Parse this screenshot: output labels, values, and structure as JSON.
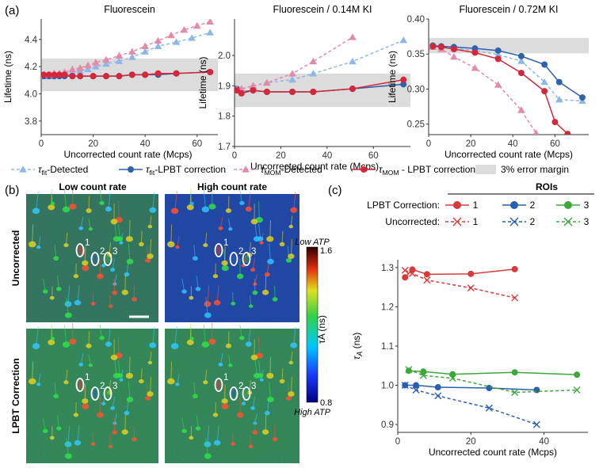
{
  "panel_labels": {
    "a": "(a)",
    "b": "(b)",
    "c": "(c)"
  },
  "colors": {
    "fit_detected": "#8fb7e6",
    "fit_lpbt": "#2f62ad",
    "mom_detected": "#e38aa8",
    "mom_lpbt": "#d4273a",
    "error_band": "#dcdcdc",
    "roi1": "#d83a3a",
    "roi2": "#2a5fb0",
    "roi3": "#3ca83a"
  },
  "chart_data": [
    {
      "type": "line",
      "title": "Fluorescein",
      "xlabel": "Uncorrected count rate (Mcps)",
      "ylabel": "Lifetime (ns)",
      "xlim": [
        0,
        68
      ],
      "ylim": [
        3.7,
        4.55
      ],
      "xticks": [
        0,
        20,
        40,
        60
      ],
      "yticks": [
        3.8,
        4.0,
        4.2,
        4.4
      ],
      "ytick_labels": [
        "3.8",
        "4.0",
        "4.2",
        "4.4"
      ],
      "error_band": [
        4.02,
        4.26
      ],
      "series": [
        {
          "name": "τfit-Detected",
          "style": "dashed",
          "marker": "triangle",
          "color_key": "fit_detected",
          "x": [
            1,
            3,
            5,
            7,
            9,
            12,
            15,
            18,
            21,
            25,
            30,
            35,
            40,
            45,
            52,
            58,
            65
          ],
          "y": [
            4.13,
            4.13,
            4.14,
            4.14,
            4.15,
            4.16,
            4.17,
            4.18,
            4.2,
            4.22,
            4.24,
            4.27,
            4.31,
            4.35,
            4.38,
            4.41,
            4.45
          ]
        },
        {
          "name": "τfit-LPBT correction",
          "style": "solid",
          "marker": "circle",
          "color_key": "fit_lpbt",
          "x": [
            1,
            3,
            5,
            7,
            9,
            12,
            15,
            20,
            25,
            30,
            35,
            40,
            45,
            52,
            65
          ],
          "y": [
            4.13,
            4.13,
            4.13,
            4.13,
            4.13,
            4.13,
            4.13,
            4.13,
            4.13,
            4.13,
            4.14,
            4.14,
            4.14,
            4.15,
            4.16
          ]
        },
        {
          "name": "τMOM-Detected",
          "style": "dashed",
          "marker": "triangle",
          "color_key": "mom_detected",
          "x": [
            1,
            3,
            5,
            7,
            9,
            12,
            15,
            18,
            21,
            25,
            30,
            35,
            40,
            45,
            50,
            55,
            60,
            65
          ],
          "y": [
            4.14,
            4.14,
            4.15,
            4.15,
            4.16,
            4.18,
            4.19,
            4.21,
            4.23,
            4.25,
            4.28,
            4.31,
            4.35,
            4.39,
            4.43,
            4.47,
            4.5,
            4.53
          ]
        },
        {
          "name": "τMOM - LPBT correction",
          "style": "solid",
          "marker": "circle",
          "color_key": "mom_lpbt",
          "x": [
            1,
            3,
            5,
            7,
            9,
            12,
            15,
            20,
            25,
            30,
            35,
            40,
            45,
            52,
            65
          ],
          "y": [
            4.14,
            4.14,
            4.14,
            4.14,
            4.14,
            4.13,
            4.13,
            4.13,
            4.13,
            4.13,
            4.14,
            4.14,
            4.15,
            4.15,
            4.16
          ]
        }
      ]
    },
    {
      "type": "line",
      "title": "Fluorescein / 0.14M KI",
      "xlabel": "Uncorrected count rate (Mcps)",
      "ylabel": "Lifetime (ns)",
      "xlim": [
        0,
        76
      ],
      "ylim": [
        1.7,
        2.12
      ],
      "xticks": [
        0,
        20,
        40,
        60
      ],
      "yticks": [
        1.7,
        1.8,
        1.9,
        2.0
      ],
      "ytick_labels": [
        "1.7",
        "1.8",
        "1.9",
        "2.0"
      ],
      "error_band": [
        1.83,
        1.94
      ],
      "series": [
        {
          "name": "τfit-Detected",
          "style": "dashed",
          "marker": "triangle",
          "color_key": "fit_detected",
          "x": [
            1,
            3,
            8,
            14,
            25,
            34,
            51,
            73
          ],
          "y": [
            1.89,
            1.89,
            1.9,
            1.91,
            1.92,
            1.94,
            1.98,
            2.05
          ]
        },
        {
          "name": "τfit-LPBT correction",
          "style": "solid",
          "marker": "circle",
          "color_key": "fit_lpbt",
          "x": [
            1,
            3,
            8,
            14,
            25,
            34,
            51,
            73
          ],
          "y": [
            1.89,
            1.88,
            1.885,
            1.88,
            1.88,
            1.88,
            1.89,
            1.905
          ]
        },
        {
          "name": "τMOM-Detected",
          "style": "dashed",
          "marker": "triangle",
          "color_key": "mom_detected",
          "x": [
            1,
            3,
            8,
            14,
            25,
            34,
            51
          ],
          "y": [
            1.89,
            1.89,
            1.9,
            1.91,
            1.94,
            1.98,
            2.06
          ]
        },
        {
          "name": "τMOM - LPBT correction",
          "style": "solid",
          "marker": "circle",
          "color_key": "mom_lpbt",
          "x": [
            1,
            3,
            8,
            14,
            25,
            34,
            51,
            73
          ],
          "y": [
            1.885,
            1.875,
            1.885,
            1.88,
            1.88,
            1.88,
            1.89,
            1.92
          ]
        }
      ]
    },
    {
      "type": "line",
      "title": "Fluorescein / 0.72M KI",
      "xlabel": "Uncorrected count rate (Mcps)",
      "ylabel": "Lifetime (ns)",
      "xlim": [
        0,
        76
      ],
      "ylim": [
        0.235,
        0.4
      ],
      "xticks": [
        0,
        20,
        40,
        60
      ],
      "yticks": [
        0.25,
        0.3,
        0.35,
        0.4
      ],
      "ytick_labels": [
        "0.25",
        "0.30",
        "0.35",
        "0.40"
      ],
      "error_band": [
        0.351,
        0.373
      ],
      "series": [
        {
          "name": "τfit-Detected",
          "style": "dashed",
          "marker": "triangle",
          "color_key": "fit_detected",
          "x": [
            2,
            6,
            12,
            22,
            33,
            44,
            55,
            62,
            73
          ],
          "y": [
            0.362,
            0.361,
            0.358,
            0.355,
            0.349,
            0.34,
            0.31,
            0.285,
            0.283
          ]
        },
        {
          "name": "τfit-LPBT correction",
          "style": "solid",
          "marker": "circle",
          "color_key": "fit_lpbt",
          "x": [
            2,
            6,
            12,
            22,
            33,
            44,
            55,
            62,
            73
          ],
          "y": [
            0.362,
            0.361,
            0.36,
            0.358,
            0.355,
            0.347,
            0.335,
            0.31,
            0.288
          ]
        },
        {
          "name": "τMOM-Detected",
          "style": "dashed",
          "marker": "triangle",
          "color_key": "mom_detected",
          "x": [
            2,
            6,
            12,
            22,
            33,
            44,
            51
          ],
          "y": [
            0.36,
            0.357,
            0.346,
            0.33,
            0.306,
            0.27,
            0.237
          ]
        },
        {
          "name": "τMOM - LPBT correction",
          "style": "solid",
          "marker": "circle",
          "color_key": "mom_lpbt",
          "x": [
            2,
            6,
            12,
            22,
            33,
            44,
            55,
            60,
            66
          ],
          "y": [
            0.361,
            0.36,
            0.357,
            0.352,
            0.343,
            0.323,
            0.297,
            0.253,
            0.236
          ]
        }
      ]
    },
    {
      "type": "line",
      "title": "",
      "xlabel": "Uncorrected count rate (Mcps)",
      "ylabel": "τA (ns)",
      "xlim": [
        0,
        52
      ],
      "ylim": [
        0.88,
        1.32
      ],
      "xticks": [
        0,
        20,
        40
      ],
      "yticks": [
        0.9,
        1.0,
        1.1,
        1.2,
        1.3
      ],
      "ytick_labels": [
        "0.9",
        "1.0",
        "1.1",
        "1.2",
        "1.3"
      ],
      "series": [
        {
          "name": "LPBT 1",
          "roi": "1",
          "style": "solid",
          "marker": "circle",
          "color_key": "roi1",
          "x": [
            2,
            4,
            8,
            20,
            32
          ],
          "y": [
            1.275,
            1.295,
            1.283,
            1.284,
            1.296
          ]
        },
        {
          "name": "Uncorrected 1",
          "roi": "1",
          "style": "dashed",
          "marker": "x",
          "color_key": "roi1",
          "x": [
            2,
            4,
            8,
            20,
            32
          ],
          "y": [
            1.293,
            1.285,
            1.268,
            1.248,
            1.223
          ]
        },
        {
          "name": "LPBT 2",
          "roi": "2",
          "style": "solid",
          "marker": "circle",
          "color_key": "roi2",
          "x": [
            2,
            5,
            11,
            25,
            38
          ],
          "y": [
            1.0,
            1.0,
            0.995,
            0.993,
            0.988
          ]
        },
        {
          "name": "Uncorrected 2",
          "roi": "2",
          "style": "dashed",
          "marker": "x",
          "color_key": "roi2",
          "x": [
            2,
            5,
            11,
            25,
            38
          ],
          "y": [
            1.0,
            0.988,
            0.973,
            0.942,
            0.9
          ]
        },
        {
          "name": "LPBT 3",
          "roi": "3",
          "style": "solid",
          "marker": "circle",
          "color_key": "roi3",
          "x": [
            3,
            7,
            15,
            32,
            49
          ],
          "y": [
            1.037,
            1.035,
            1.028,
            1.033,
            1.027
          ]
        },
        {
          "name": "Uncorrected 3",
          "roi": "3",
          "style": "dashed",
          "marker": "x",
          "color_key": "roi3",
          "x": [
            3,
            7,
            15,
            32,
            49
          ],
          "y": [
            1.04,
            1.025,
            1.018,
            0.982,
            0.988
          ]
        }
      ]
    }
  ],
  "legend_a": [
    {
      "main": "τ",
      "sub": "fit",
      "suffix": "-Detected",
      "color_key": "fit_detected",
      "style": "dashed",
      "marker": "triangle"
    },
    {
      "main": "τ",
      "sub": "fit",
      "suffix": "-LPBT correction",
      "color_key": "fit_lpbt",
      "style": "solid",
      "marker": "circle"
    },
    {
      "main": "τ",
      "sub": "MOM",
      "suffix": "-Detected",
      "color_key": "mom_detected",
      "style": "dashed",
      "marker": "triangle"
    },
    {
      "main": "τ",
      "sub": "MOM",
      "suffix": " - LPBT correction",
      "color_key": "mom_lpbt",
      "style": "solid",
      "marker": "circle"
    },
    {
      "suffix": "3% error margin",
      "color_key": "error_band",
      "style": "band"
    }
  ],
  "legend_c": {
    "header": "ROIs",
    "rows": [
      {
        "label": "LPBT Correction:",
        "style": "solid",
        "marker": "circle",
        "rois": [
          "1",
          "2",
          "3"
        ]
      },
      {
        "label": "Uncorrected:",
        "style": "dashed",
        "marker": "x",
        "rois": [
          "1",
          "2",
          "3"
        ]
      }
    ]
  },
  "panel_b": {
    "col_low": "Low count rate",
    "col_high": "High count rate",
    "row_uncorrected": "Uncorrected",
    "row_lpbt": "LPBT Correction",
    "roi_labels": [
      "1",
      "2",
      "3"
    ],
    "colorbar": {
      "max": "1.6",
      "min": "0.8",
      "top_note": "Low ATP",
      "bottom_note": "High ATP",
      "label": "τA (ns)"
    }
  }
}
